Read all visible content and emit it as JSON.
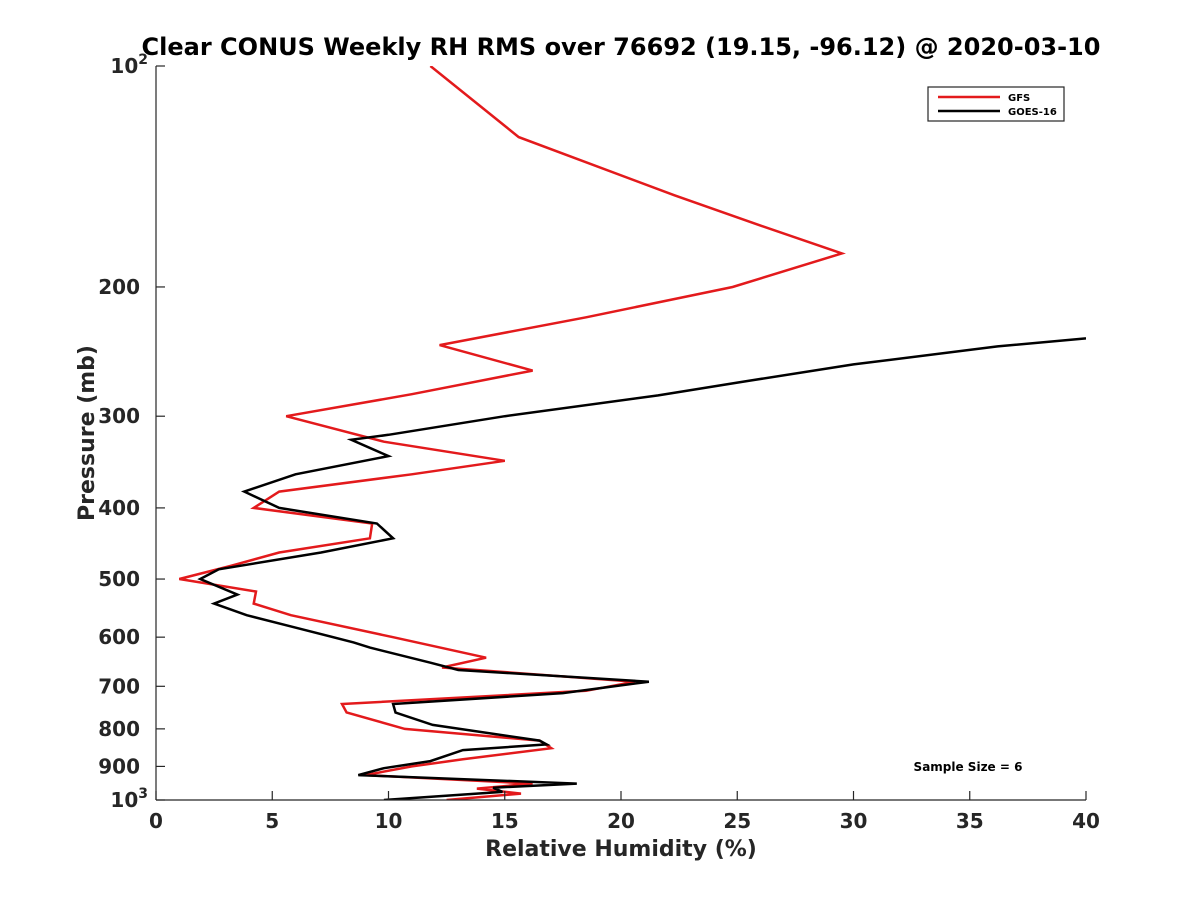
{
  "chart_data": {
    "type": "line",
    "title": "Clear CONUS Weekly RH RMS over 76692 (19.15, -96.12) @ 2020-03-10",
    "xlabel": "Relative Humidity (%)",
    "ylabel": "Pressure (mb)",
    "xlim": [
      0,
      40
    ],
    "ylim": [
      100,
      1000
    ],
    "yscale": "log",
    "y_reversed": true,
    "xticks": [
      0,
      5,
      10,
      15,
      20,
      25,
      30,
      35,
      40
    ],
    "xtick_labels": [
      "0",
      "5",
      "10",
      "15",
      "20",
      "25",
      "30",
      "35",
      "40"
    ],
    "yticks": [
      {
        "value": 100,
        "base": "10",
        "exp": "2"
      },
      {
        "value": 200,
        "label": "200"
      },
      {
        "value": 300,
        "label": "300"
      },
      {
        "value": 400,
        "label": "400"
      },
      {
        "value": 500,
        "label": "500"
      },
      {
        "value": 600,
        "label": "600"
      },
      {
        "value": 700,
        "label": "700"
      },
      {
        "value": 800,
        "label": "800"
      },
      {
        "value": 900,
        "label": "900"
      },
      {
        "value": 1000,
        "base": "10",
        "exp": "3"
      }
    ],
    "grid": false,
    "legend_position": "top-right",
    "annotation": "Sample Size = 6",
    "series": [
      {
        "name": "GFS",
        "color": "#e31a1c",
        "points": [
          [
            11.8,
            100
          ],
          [
            15.6,
            125
          ],
          [
            22.3,
            150
          ],
          [
            26.0,
            165
          ],
          [
            29.5,
            180
          ],
          [
            24.8,
            200
          ],
          [
            18.5,
            220
          ],
          [
            12.2,
            240
          ],
          [
            16.2,
            260
          ],
          [
            11.0,
            280
          ],
          [
            5.6,
            300
          ],
          [
            9.8,
            325
          ],
          [
            15.0,
            345
          ],
          [
            11.0,
            360
          ],
          [
            5.3,
            380
          ],
          [
            4.2,
            400
          ],
          [
            9.3,
            420
          ],
          [
            9.2,
            440
          ],
          [
            5.3,
            460
          ],
          [
            3.2,
            480
          ],
          [
            1.0,
            500
          ],
          [
            4.3,
            520
          ],
          [
            4.2,
            540
          ],
          [
            5.8,
            560
          ],
          [
            10.2,
            600
          ],
          [
            14.2,
            640
          ],
          [
            12.3,
            660
          ],
          [
            20.6,
            690
          ],
          [
            18.5,
            710
          ],
          [
            8.0,
            740
          ],
          [
            8.2,
            760
          ],
          [
            10.7,
            800
          ],
          [
            16.5,
            830
          ],
          [
            17.0,
            850
          ],
          [
            13.2,
            880
          ],
          [
            11.0,
            900
          ],
          [
            9.0,
            925
          ],
          [
            16.2,
            950
          ],
          [
            13.8,
            965
          ],
          [
            15.7,
            980
          ],
          [
            12.5,
            1000
          ]
        ]
      },
      {
        "name": "GOES-16",
        "color": "#000000",
        "points": [
          [
            40.0,
            235
          ],
          [
            36.2,
            241
          ],
          [
            30.0,
            255
          ],
          [
            25.0,
            270
          ],
          [
            21.6,
            281
          ],
          [
            15.0,
            300
          ],
          [
            10.0,
            318
          ],
          [
            8.4,
            323
          ],
          [
            10.0,
            340
          ],
          [
            6.0,
            360
          ],
          [
            3.8,
            380
          ],
          [
            5.3,
            400
          ],
          [
            9.5,
            420
          ],
          [
            10.2,
            440
          ],
          [
            7.1,
            460
          ],
          [
            2.7,
            485
          ],
          [
            1.9,
            500
          ],
          [
            3.5,
            525
          ],
          [
            2.5,
            540
          ],
          [
            3.9,
            560
          ],
          [
            5.8,
            580
          ],
          [
            8.5,
            610
          ],
          [
            9.2,
            620
          ],
          [
            11.8,
            650
          ],
          [
            13.0,
            665
          ],
          [
            21.2,
            690
          ],
          [
            17.5,
            715
          ],
          [
            10.2,
            740
          ],
          [
            10.3,
            760
          ],
          [
            11.9,
            790
          ],
          [
            16.5,
            830
          ],
          [
            16.8,
            840
          ],
          [
            13.2,
            855
          ],
          [
            11.8,
            885
          ],
          [
            9.8,
            905
          ],
          [
            8.7,
            925
          ],
          [
            18.1,
            950
          ],
          [
            14.5,
            962
          ],
          [
            14.9,
            975
          ],
          [
            9.8,
            1000
          ]
        ]
      }
    ]
  }
}
